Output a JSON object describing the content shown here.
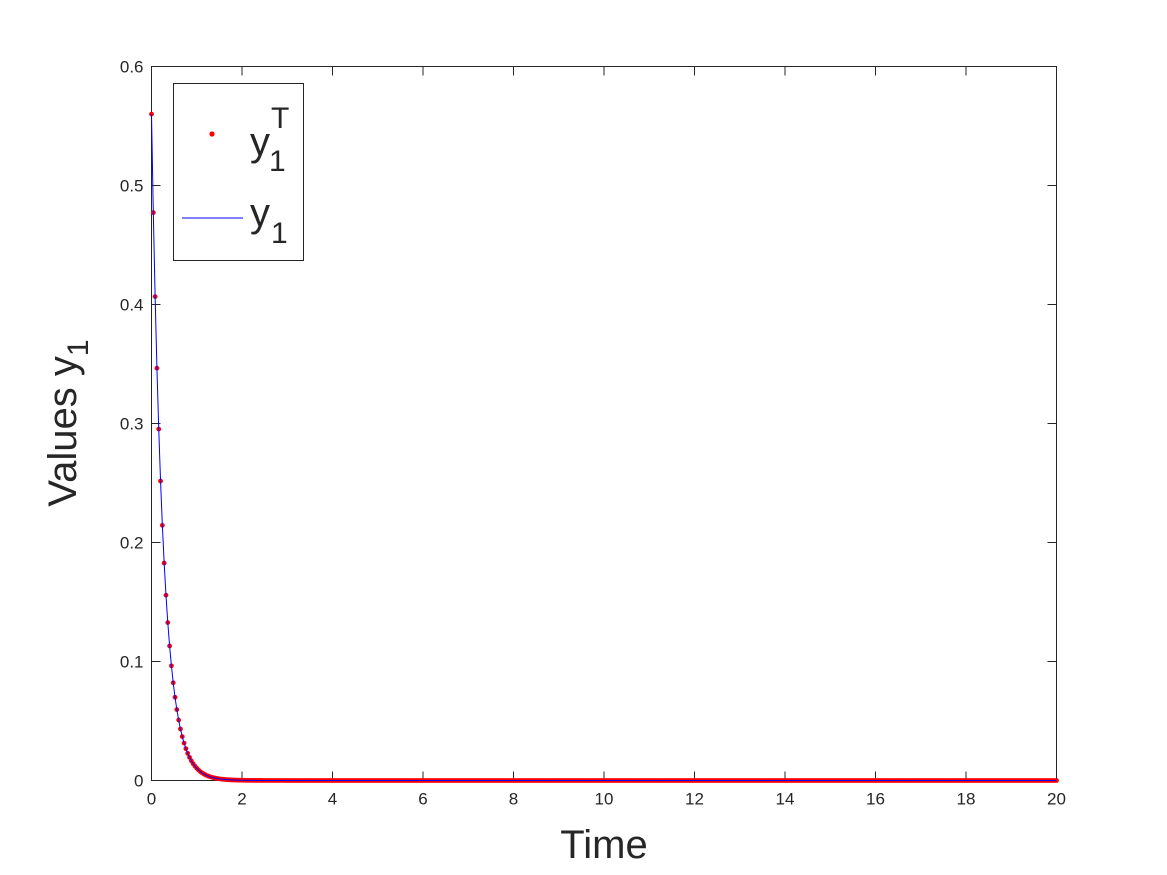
{
  "chart_data": {
    "type": "line",
    "title": "",
    "xlabel": "Time",
    "ylabel": {
      "text": "Values y",
      "subscript": "1"
    },
    "xlim": [
      0,
      20
    ],
    "ylim": [
      0,
      0.6
    ],
    "xticks": [
      "0",
      "2",
      "4",
      "6",
      "8",
      "10",
      "12",
      "14",
      "16",
      "18",
      "20"
    ],
    "yticks": [
      "0",
      "0.1",
      "0.2",
      "0.3",
      "0.4",
      "0.5",
      "0.6"
    ],
    "grid": false,
    "legend_position": "top-left",
    "curve_model": {
      "y0": 0.56,
      "decay_rate": 4.0,
      "x_start": 0,
      "x_end": 20,
      "marker_spacing": 0.04
    },
    "series": [
      {
        "name": "y",
        "name_subscript": "1",
        "name_superscript": "T",
        "style": "markers",
        "color": "#ff0000"
      },
      {
        "name": "y",
        "name_subscript": "1",
        "style": "line",
        "color": "#0000ff"
      }
    ]
  }
}
